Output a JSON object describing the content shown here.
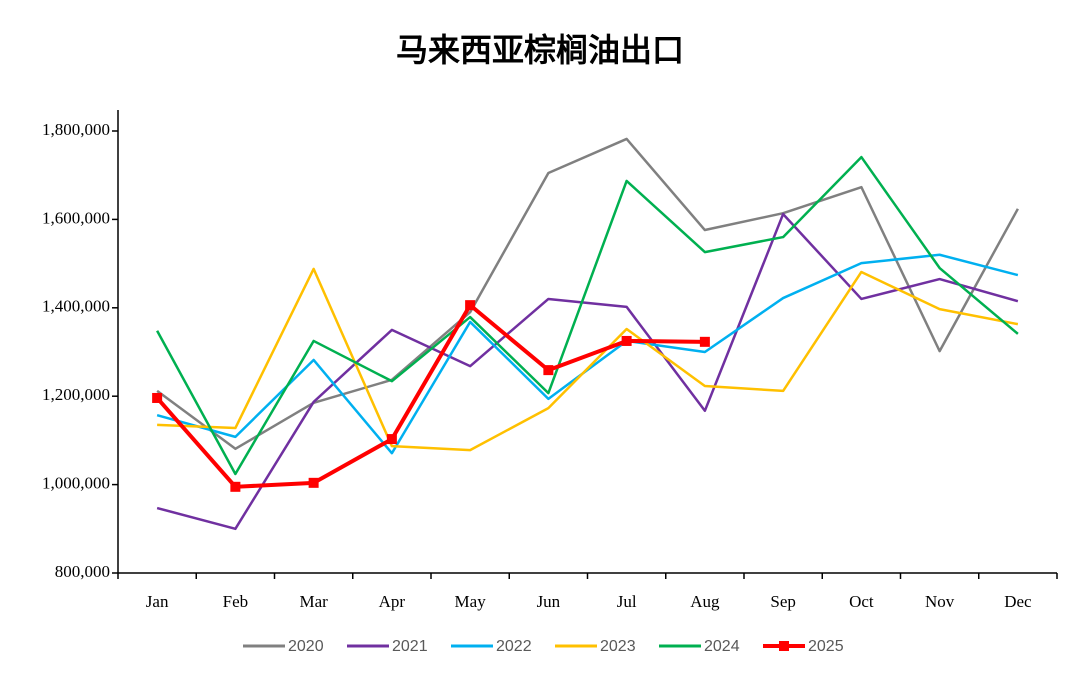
{
  "chart_data": {
    "type": "line",
    "title": "马来西亚棕榈油出口",
    "categories": [
      "Jan",
      "Feb",
      "Mar",
      "Apr",
      "May",
      "Jun",
      "Jul",
      "Aug",
      "Sep",
      "Oct",
      "Nov",
      "Dec"
    ],
    "ylim": [
      800000,
      1800000
    ],
    "yticks": [
      {
        "value": 800000,
        "label": "800,000"
      },
      {
        "value": 1000000,
        "label": "1,000,000"
      },
      {
        "value": 1200000,
        "label": "1,200,000"
      },
      {
        "value": 1400000,
        "label": "1,400,000"
      },
      {
        "value": 1600000,
        "label": "1,600,000"
      },
      {
        "value": 1800000,
        "label": "1,800,000"
      }
    ],
    "grid": false,
    "legend": "bottom",
    "series": [
      {
        "name": "2020",
        "color": "#808080",
        "values": [
          1212000,
          1081000,
          1185000,
          1237000,
          1390000,
          1705000,
          1782000,
          1576000,
          1614000,
          1673000,
          1302000,
          1624000
        ]
      },
      {
        "name": "2021",
        "color": "#7030a0",
        "values": [
          947000,
          900000,
          1187000,
          1350000,
          1268000,
          1420000,
          1402000,
          1167000,
          1612000,
          1420000,
          1465000,
          1415000
        ]
      },
      {
        "name": "2022",
        "color": "#00b0f0",
        "values": [
          1157000,
          1108000,
          1282000,
          1071000,
          1368000,
          1194000,
          1325000,
          1300000,
          1422000,
          1501000,
          1520000,
          1474000
        ]
      },
      {
        "name": "2023",
        "color": "#ffc000",
        "values": [
          1135000,
          1128000,
          1488000,
          1087000,
          1078000,
          1173000,
          1352000,
          1223000,
          1212000,
          1481000,
          1397000,
          1363000
        ]
      },
      {
        "name": "2024",
        "color": "#00b050",
        "values": [
          1348000,
          1024000,
          1325000,
          1234000,
          1379000,
          1207000,
          1687000,
          1526000,
          1560000,
          1741000,
          1490000,
          1341000
        ]
      },
      {
        "name": "2025",
        "color": "#ff0000",
        "marker": "square",
        "values": [
          1196000,
          995000,
          1004000,
          1103000,
          1406000,
          1259000,
          1325000,
          1323000,
          null,
          null,
          null,
          null
        ]
      }
    ]
  }
}
